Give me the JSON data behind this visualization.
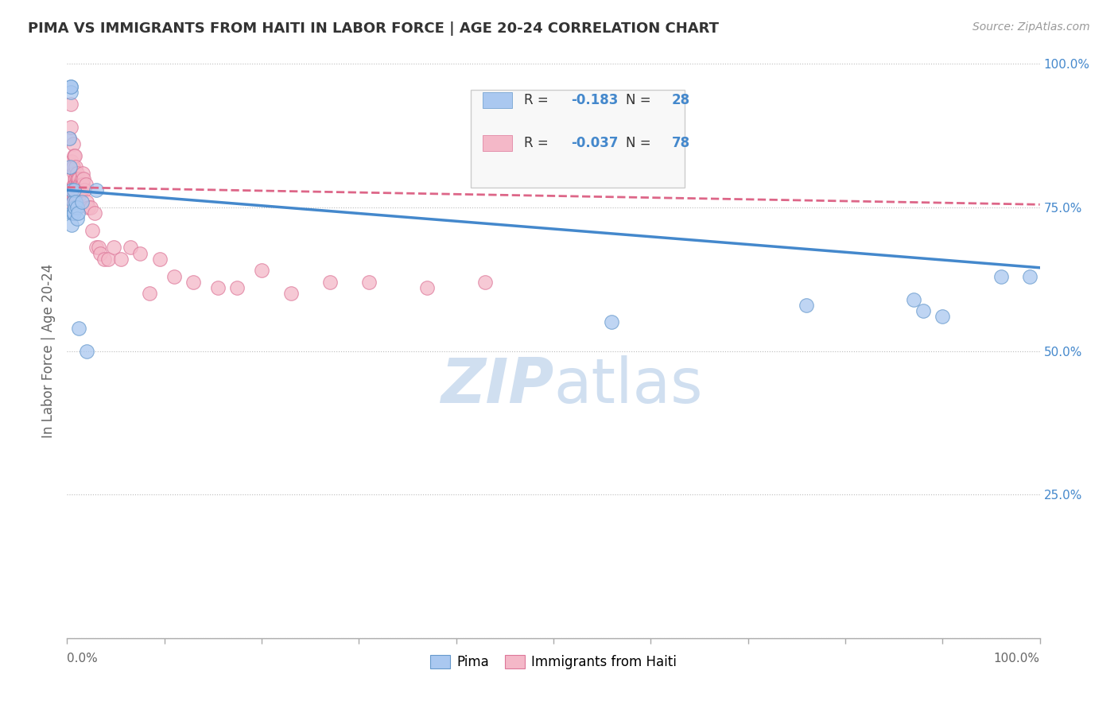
{
  "title": "PIMA VS IMMIGRANTS FROM HAITI IN LABOR FORCE | AGE 20-24 CORRELATION CHART",
  "source": "Source: ZipAtlas.com",
  "ylabel": "In Labor Force | Age 20-24",
  "legend_label1": "Pima",
  "legend_label2": "Immigrants from Haiti",
  "r1": -0.183,
  "n1": 28,
  "r2": -0.037,
  "n2": 78,
  "color_blue": "#aac8f0",
  "color_pink": "#f4b8c8",
  "color_blue_edge": "#6699cc",
  "color_pink_edge": "#dd7799",
  "color_trend_blue": "#4488cc",
  "color_trend_pink": "#dd6688",
  "background": "#ffffff",
  "grid_color": "#bbbbbb",
  "right_axis_color": "#4488cc",
  "title_color": "#333333",
  "watermark_color": "#d0dff0",
  "xlim": [
    0.0,
    1.0
  ],
  "ylim": [
    0.0,
    1.0
  ],
  "pima_x": [
    0.002,
    0.003,
    0.004,
    0.004,
    0.004,
    0.005,
    0.005,
    0.005,
    0.006,
    0.006,
    0.007,
    0.007,
    0.008,
    0.009,
    0.01,
    0.01,
    0.011,
    0.012,
    0.015,
    0.02,
    0.03,
    0.56,
    0.76,
    0.87,
    0.88,
    0.9,
    0.96,
    0.99
  ],
  "pima_y": [
    0.87,
    0.82,
    0.96,
    0.95,
    0.96,
    0.78,
    0.74,
    0.72,
    0.76,
    0.74,
    0.78,
    0.74,
    0.75,
    0.76,
    0.75,
    0.73,
    0.74,
    0.54,
    0.76,
    0.5,
    0.78,
    0.55,
    0.58,
    0.59,
    0.57,
    0.56,
    0.63,
    0.63
  ],
  "haiti_x": [
    0.002,
    0.003,
    0.003,
    0.004,
    0.004,
    0.005,
    0.005,
    0.005,
    0.005,
    0.006,
    0.006,
    0.006,
    0.006,
    0.007,
    0.007,
    0.007,
    0.007,
    0.007,
    0.008,
    0.008,
    0.008,
    0.008,
    0.009,
    0.009,
    0.009,
    0.009,
    0.01,
    0.01,
    0.01,
    0.01,
    0.01,
    0.011,
    0.011,
    0.011,
    0.011,
    0.012,
    0.012,
    0.012,
    0.012,
    0.013,
    0.013,
    0.013,
    0.014,
    0.014,
    0.015,
    0.015,
    0.015,
    0.016,
    0.016,
    0.017,
    0.018,
    0.019,
    0.02,
    0.022,
    0.024,
    0.026,
    0.028,
    0.03,
    0.032,
    0.034,
    0.038,
    0.042,
    0.048,
    0.055,
    0.065,
    0.075,
    0.085,
    0.095,
    0.11,
    0.13,
    0.155,
    0.175,
    0.2,
    0.23,
    0.27,
    0.31,
    0.37,
    0.43
  ],
  "haiti_y": [
    0.87,
    0.82,
    0.78,
    0.89,
    0.93,
    0.83,
    0.77,
    0.76,
    0.75,
    0.82,
    0.86,
    0.82,
    0.77,
    0.84,
    0.81,
    0.79,
    0.79,
    0.77,
    0.84,
    0.8,
    0.78,
    0.77,
    0.82,
    0.8,
    0.79,
    0.77,
    0.81,
    0.8,
    0.79,
    0.79,
    0.77,
    0.79,
    0.8,
    0.79,
    0.78,
    0.8,
    0.78,
    0.78,
    0.77,
    0.79,
    0.78,
    0.78,
    0.79,
    0.78,
    0.8,
    0.79,
    0.78,
    0.81,
    0.79,
    0.8,
    0.78,
    0.79,
    0.76,
    0.75,
    0.75,
    0.71,
    0.74,
    0.68,
    0.68,
    0.67,
    0.66,
    0.66,
    0.68,
    0.66,
    0.68,
    0.67,
    0.6,
    0.66,
    0.63,
    0.62,
    0.61,
    0.61,
    0.64,
    0.6,
    0.62,
    0.62,
    0.61,
    0.62
  ],
  "trend_pima_x0": 0.0,
  "trend_pima_y0": 0.78,
  "trend_pima_x1": 1.0,
  "trend_pima_y1": 0.645,
  "trend_haiti_x0": 0.0,
  "trend_haiti_y0": 0.785,
  "trend_haiti_x1": 1.0,
  "trend_haiti_y1": 0.755
}
